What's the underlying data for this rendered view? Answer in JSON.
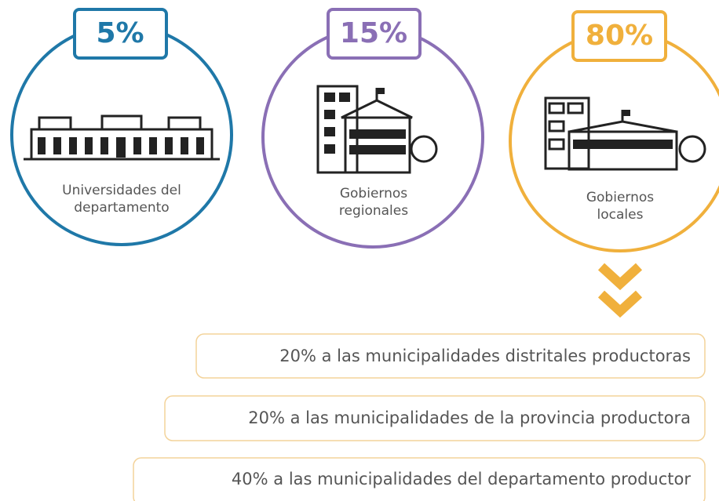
{
  "groups": [
    {
      "percent": "5%",
      "label": [
        "Universidades del",
        "departamento"
      ]
    },
    {
      "percent": "15%",
      "label": [
        "Gobiernos",
        "regionales"
      ]
    },
    {
      "percent": "80%",
      "label": [
        "Gobiernos",
        "locales"
      ]
    }
  ],
  "breakdown": [
    "20% a las municipalidades distritales productoras",
    "20% a las municipalidades de la provincia productora",
    "40% a las municipalidades del departamento productor"
  ]
}
